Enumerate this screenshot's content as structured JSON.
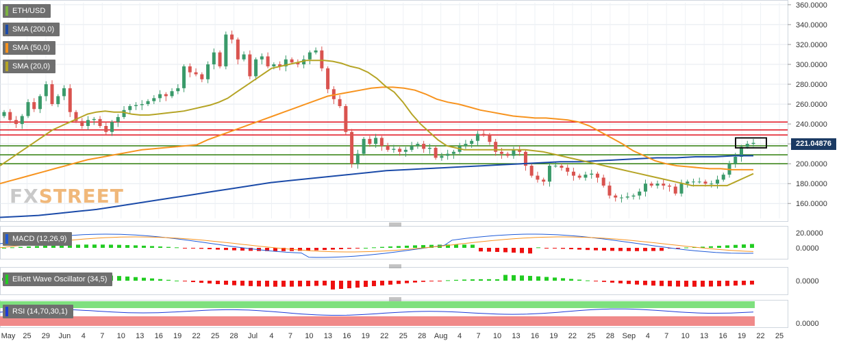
{
  "legend": [
    {
      "label": "ETH/USD",
      "color": "#7cb342"
    },
    {
      "label": "SMA (200,0)",
      "color": "#1a4aa8"
    },
    {
      "label": "SMA (50,0)",
      "color": "#f7931e"
    },
    {
      "label": "SMA (20,0)",
      "color": "#b5a425"
    }
  ],
  "logo": {
    "part1": "FX",
    "part2": "STREET"
  },
  "current_price": "221.04876",
  "colors": {
    "up": "#3a9a6a",
    "down": "#d9534f",
    "sma200": "#1a4aa8",
    "sma50": "#f7931e",
    "sma20": "#b5a425",
    "resistance": "#e0101e",
    "support": "#2e7d0a",
    "macd": "#1e5ad8",
    "signal": "#f7931e",
    "hist_pos": "#22cc22",
    "hist_neg": "#ee1111",
    "rsi": "#1e3ad8",
    "rsi_over": "#7ee07e",
    "rsi_under": "#f08a8a"
  },
  "indicators": {
    "macd": {
      "label": "MACD (12,26,9)",
      "ticks": [
        "20.0000",
        "0.0000"
      ]
    },
    "ewo": {
      "label": "Elliott Wave Oscillator (34,5)",
      "ticks": [
        "0.0000"
      ]
    },
    "rsi": {
      "label": "RSI (14,70,30,1)",
      "ticks": [
        "0.0000"
      ]
    }
  },
  "chart_data": {
    "type": "candlestick",
    "symbol": "ETH/USD",
    "ylim": [
      145,
      362
    ],
    "y_ticks": [
      "360.0000",
      "340.0000",
      "320.0000",
      "300.0000",
      "280.0000",
      "260.0000",
      "240.0000",
      "220.0000",
      "200.0000",
      "180.0000",
      "160.0000"
    ],
    "x_ticks": [
      "May",
      "25",
      "29",
      "Jun",
      "4",
      "7",
      "10",
      "13",
      "16",
      "19",
      "22",
      "25",
      "28",
      "Jul",
      "4",
      "7",
      "10",
      "13",
      "16",
      "19",
      "22",
      "25",
      "28",
      "Aug",
      "4",
      "7",
      "10",
      "13",
      "16",
      "19",
      "22",
      "25",
      "28",
      "Sep",
      "4",
      "7",
      "10",
      "13",
      "16",
      "19",
      "22",
      "25"
    ],
    "close": [
      252,
      244,
      240,
      248,
      262,
      255,
      268,
      280,
      260,
      268,
      276,
      252,
      243,
      238,
      244,
      245,
      238,
      232,
      242,
      247,
      254,
      258,
      259,
      260,
      263,
      266,
      270,
      268,
      273,
      276,
      298,
      292,
      290,
      285,
      300,
      312,
      298,
      330,
      325,
      305,
      310,
      288,
      305,
      308,
      298,
      300,
      298,
      305,
      302,
      300,
      305,
      312,
      314,
      296,
      275,
      265,
      258,
      232,
      200,
      210,
      225,
      220,
      226,
      218,
      214,
      215,
      212,
      214,
      218,
      220,
      215,
      216,
      206,
      208,
      210,
      212,
      218,
      220,
      223,
      230,
      229,
      222,
      212,
      210,
      208,
      214,
      212,
      198,
      188,
      184,
      182,
      198,
      198,
      196,
      192,
      188,
      186,
      189,
      190,
      186,
      178,
      168,
      166,
      166,
      167,
      168,
      172,
      180,
      178,
      180,
      178,
      177,
      170,
      180,
      182,
      182,
      182,
      180,
      180,
      184,
      189,
      200,
      207,
      217,
      220,
      221
    ],
    "candles_drawn": 126,
    "sma20": [
      198,
      204,
      210,
      216,
      222,
      228,
      234,
      238,
      242,
      246,
      250,
      252,
      253,
      252,
      252,
      250,
      249,
      249,
      250,
      251,
      252,
      253,
      255,
      257,
      259,
      262,
      266,
      272,
      278,
      284,
      290,
      296,
      298,
      300,
      302,
      304,
      304,
      304,
      303,
      301,
      298,
      296,
      292,
      286,
      278,
      272,
      262,
      250,
      240,
      232,
      224,
      218,
      216,
      214,
      214,
      214,
      214,
      214,
      214,
      214,
      214,
      213,
      212,
      210,
      208,
      206,
      204,
      202,
      200,
      198,
      196,
      194,
      192,
      190,
      188,
      186,
      184,
      182,
      180,
      178,
      178,
      178,
      178,
      178,
      182,
      186,
      190
    ],
    "sma50": [
      180,
      183,
      186,
      189,
      192,
      195,
      198,
      201,
      204,
      206,
      208,
      210,
      212,
      214,
      215,
      216,
      217,
      218,
      219,
      224,
      228,
      232,
      236,
      240,
      244,
      248,
      252,
      256,
      260,
      264,
      268,
      270,
      272,
      274,
      276,
      277,
      277,
      276,
      274,
      270,
      265,
      262,
      260,
      257,
      254,
      252,
      250,
      248,
      247,
      246,
      246,
      245,
      244,
      242,
      238,
      232,
      226,
      220,
      213,
      208,
      203,
      200,
      198,
      197,
      196,
      195,
      195,
      194,
      194,
      194
    ],
    "sma200": [
      146,
      147,
      148,
      150,
      152,
      154,
      157,
      160,
      163,
      166,
      169,
      172,
      175,
      178,
      181,
      183,
      185,
      187,
      189,
      191,
      193,
      194,
      195,
      196,
      197,
      198,
      199,
      200,
      201,
      202,
      202,
      203,
      204,
      205,
      206,
      206,
      207,
      207,
      208,
      208
    ],
    "horizontal_lines": {
      "resistance": [
        242,
        234,
        229
      ],
      "support": [
        218,
        209,
        200
      ]
    },
    "highlight_box_price_range": [
      216,
      226
    ]
  }
}
